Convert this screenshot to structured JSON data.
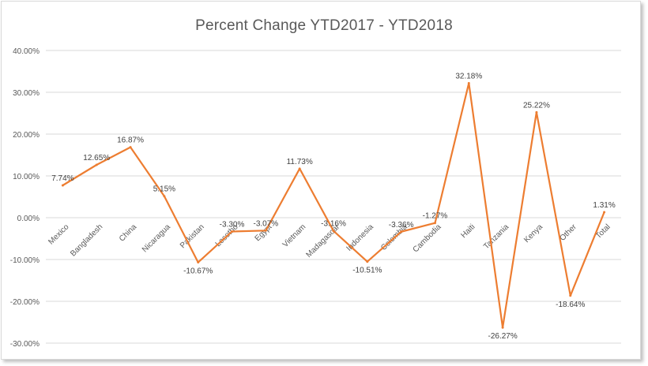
{
  "chart_data": {
    "type": "line",
    "title": "Percent Change YTD2017 - YTD2018",
    "xlabel": "",
    "ylabel": "",
    "ylim": [
      -30,
      40
    ],
    "yticks": [
      "-30.00%",
      "-20.00%",
      "-10.00%",
      "0.00%",
      "10.00%",
      "20.00%",
      "30.00%",
      "40.00%"
    ],
    "grid": true,
    "legend": "none",
    "line_color": "#ed7d31",
    "categories": [
      "Mexico",
      "Bangladesh",
      "China",
      "Nicaragua",
      "Pakistan",
      "Lesotho",
      "Egypt",
      "Vietnam",
      "Madagascar",
      "Indonesia",
      "Colombia",
      "Cambodia",
      "Haiti",
      "Tanzania",
      "Kenya",
      "Other",
      "Total"
    ],
    "values": [
      7.74,
      12.65,
      16.87,
      5.15,
      -10.67,
      -3.3,
      -3.07,
      11.73,
      -3.16,
      -10.51,
      -3.36,
      -1.27,
      32.18,
      -26.27,
      25.22,
      -18.64,
      1.31
    ],
    "data_labels": [
      "7.74%",
      "12.65%",
      "16.87%",
      "5.15%",
      "-10.67%",
      "-3.30%",
      "-3.07%",
      "11.73%",
      "-3.16%",
      "-10.51%",
      "-3.36%",
      "-1.27%",
      "32.18%",
      "-26.27%",
      "25.22%",
      "-18.64%",
      "1.31%"
    ]
  }
}
